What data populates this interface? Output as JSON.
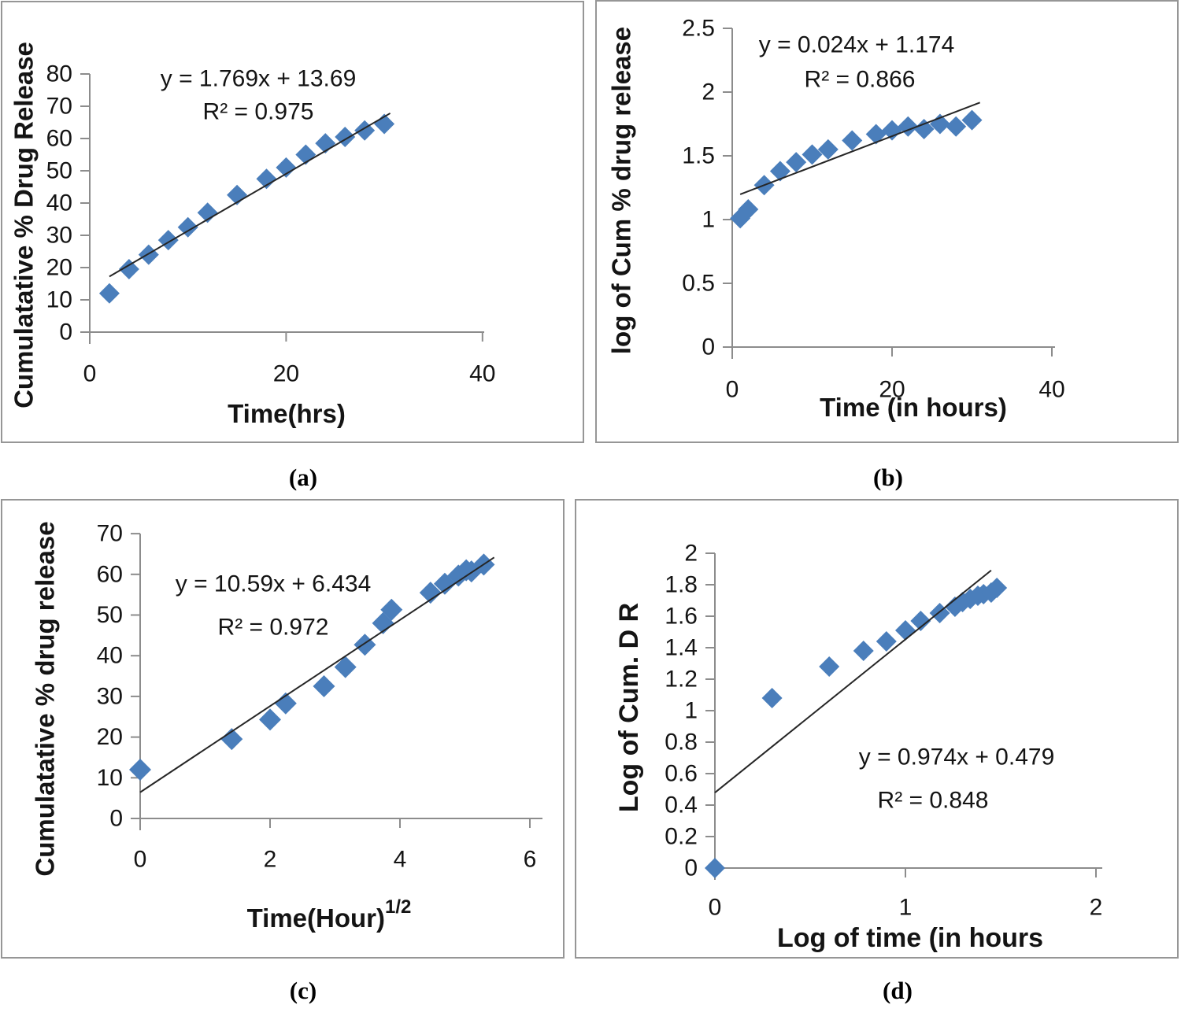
{
  "colors": {
    "marker": "#4a7ebb",
    "trendline": "#262626",
    "axis": "#8c8c8c",
    "panel_border": "#969696",
    "text": "#141414"
  },
  "panels": [
    {
      "id": "a",
      "caption": "(a)",
      "equation": "y = 1.769x + 13.69",
      "r_squared": "R² = 0.975",
      "x_label": "Time(hrs)",
      "x_label_sup": "",
      "y_label": "Cumulatative % Drug Release",
      "x_ticks": [
        "0",
        "20",
        "40"
      ],
      "y_ticks": [
        "0",
        "10",
        "20",
        "30",
        "40",
        "50",
        "60",
        "70",
        "80"
      ]
    },
    {
      "id": "b",
      "caption": "(b)",
      "equation": "y = 0.024x + 1.174",
      "r_squared": "R² = 0.866",
      "x_label": "Time (in hours)",
      "x_label_sup": "",
      "y_label": "log of Cum % drug release",
      "x_ticks": [
        "0",
        "20",
        "40"
      ],
      "y_ticks": [
        "0",
        "0.5",
        "1",
        "1.5",
        "2",
        "2.5"
      ]
    },
    {
      "id": "c",
      "caption": "(c)",
      "equation": "y = 10.59x + 6.434",
      "r_squared": "R² = 0.972",
      "x_label": "Time(Hour)",
      "x_label_sup": "1/2",
      "y_label": "Cumulatative % drug release",
      "x_ticks": [
        "0",
        "2",
        "4",
        "6"
      ],
      "y_ticks": [
        "0",
        "10",
        "20",
        "30",
        "40",
        "50",
        "60",
        "70"
      ]
    },
    {
      "id": "d",
      "caption": "(d)",
      "equation": "y = 0.974x + 0.479",
      "r_squared": "R² = 0.848",
      "x_label": "Log of time  (in hours",
      "x_label_sup": "",
      "y_label": "Log of Cum. D R",
      "x_ticks": [
        "0",
        "1",
        "2"
      ],
      "y_ticks": [
        "0",
        "0.2",
        "0.4",
        "0.6",
        "0.8",
        "1",
        "1.2",
        "1.4",
        "1.6",
        "1.8",
        "2"
      ]
    }
  ],
  "chart_data": [
    {
      "panel": "a",
      "type": "scatter",
      "title": "",
      "xlabel": "Time(hrs)",
      "ylabel": "Cumulatative % Drug Release",
      "xlim": [
        0,
        40
      ],
      "ylim": [
        0,
        80
      ],
      "grid": false,
      "legend": "none",
      "x": [
        2,
        4,
        6,
        8,
        10,
        12,
        15,
        18,
        20,
        22,
        24,
        26,
        28,
        30
      ],
      "y": [
        12,
        19.5,
        24,
        28.5,
        32.5,
        37,
        42.5,
        47.5,
        51,
        55,
        58.5,
        60.5,
        62.5,
        64.5
      ],
      "trendline": {
        "equation": "y = 1.769x + 13.69",
        "r2": 0.975,
        "slope": 1.769,
        "intercept": 13.69,
        "x_range": [
          2,
          30.6
        ]
      }
    },
    {
      "panel": "b",
      "type": "scatter",
      "title": "",
      "xlabel": "Time (in hours)",
      "ylabel": "log of Cum % drug release",
      "xlim": [
        0,
        40
      ],
      "ylim": [
        0,
        2.5
      ],
      "grid": false,
      "legend": "none",
      "x": [
        1,
        2,
        4,
        6,
        8,
        10,
        12,
        15,
        18,
        20,
        22,
        24,
        26,
        28,
        30
      ],
      "y": [
        1.01,
        1.08,
        1.27,
        1.38,
        1.45,
        1.51,
        1.55,
        1.62,
        1.67,
        1.7,
        1.73,
        1.71,
        1.75,
        1.73,
        1.78
      ],
      "trendline": {
        "equation": "y = 0.024x + 1.174",
        "r2": 0.866,
        "slope": 0.024,
        "intercept": 1.174,
        "x_range": [
          1,
          31
        ]
      }
    },
    {
      "panel": "c",
      "type": "scatter",
      "title": "",
      "xlabel": "Time(Hour)^1/2",
      "ylabel": "Cumulatative % drug release",
      "xlim": [
        0,
        6
      ],
      "ylim": [
        0,
        70
      ],
      "grid": false,
      "legend": "none",
      "x": [
        0,
        1.41,
        2.0,
        2.24,
        2.83,
        3.16,
        3.46,
        3.74,
        3.87,
        4.47,
        4.69,
        4.9,
        5.02,
        5.1,
        5.29
      ],
      "y": [
        12,
        19.5,
        24.3,
        28.3,
        32.5,
        37.2,
        42.7,
        48,
        51.3,
        55.5,
        57.7,
        59.7,
        61,
        60.7,
        62.4
      ],
      "trendline": {
        "equation": "y = 10.59x + 6.434",
        "r2": 0.972,
        "slope": 10.59,
        "intercept": 6.434,
        "x_range": [
          0,
          5.45
        ]
      }
    },
    {
      "panel": "d",
      "type": "scatter",
      "title": "",
      "xlabel": "Log of time  (in hours",
      "ylabel": "Log of Cum. D R",
      "xlim": [
        0,
        2
      ],
      "ylim": [
        0,
        2
      ],
      "grid": false,
      "legend": "none",
      "x": [
        0,
        0.3,
        0.6,
        0.78,
        0.9,
        1.0,
        1.08,
        1.18,
        1.26,
        1.3,
        1.34,
        1.38,
        1.41,
        1.45,
        1.48
      ],
      "y": [
        0,
        1.08,
        1.28,
        1.38,
        1.44,
        1.51,
        1.57,
        1.62,
        1.66,
        1.69,
        1.71,
        1.73,
        1.74,
        1.75,
        1.78
      ],
      "trendline": {
        "equation": "y = 0.974x + 0.479",
        "r2": 0.848,
        "slope": 0.974,
        "intercept": 0.479,
        "x_range": [
          0,
          1.45
        ]
      }
    }
  ]
}
